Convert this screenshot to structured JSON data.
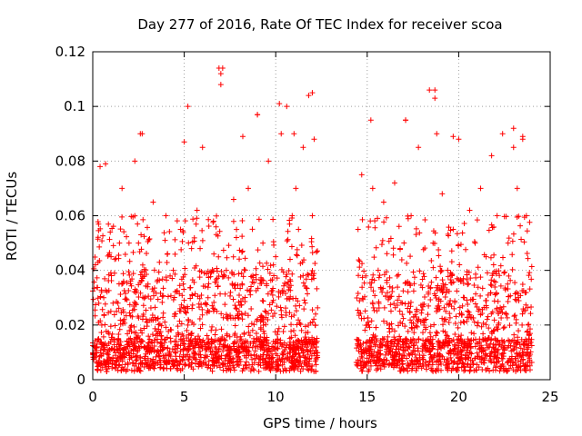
{
  "chart_data": {
    "type": "scatter",
    "title": "Day 277 of 2016, Rate Of TEC Index for receiver scoa",
    "xlabel": "GPS time / hours",
    "ylabel": "ROTI / TECUs",
    "xlim": [
      0,
      25
    ],
    "ylim": [
      0,
      0.12
    ],
    "xticks": [
      0,
      5,
      10,
      15,
      20,
      25
    ],
    "xtick_labels": [
      "0",
      "5",
      "10",
      "15",
      "20",
      "25"
    ],
    "yticks": [
      0,
      0.02,
      0.04,
      0.06,
      0.08,
      0.1,
      0.12
    ],
    "ytick_labels": [
      "0",
      "0.02",
      "0.04",
      "0.06",
      "0.08",
      "0.1",
      "0.12"
    ],
    "grid": true,
    "legend": "none",
    "marker": "plus",
    "color": "#ff0000",
    "data_gap_hours": [
      12.3,
      14.4
    ],
    "series": [
      {
        "name": "ROTI",
        "x": [
          0.2,
          0.4,
          0.6,
          0.7,
          1.0,
          1.3,
          1.6,
          2.0,
          2.3,
          2.5,
          2.7,
          3.0,
          3.3,
          3.7,
          4.0,
          4.4,
          4.8,
          5.0,
          5.2,
          5.4,
          5.7,
          6.0,
          6.3,
          6.6,
          6.9,
          7.0,
          7.3,
          7.7,
          8.0,
          8.2,
          8.5,
          8.8,
          9.0,
          9.3,
          9.6,
          10.0,
          10.3,
          10.6,
          10.9,
          11.1,
          11.5,
          11.8,
          12.0,
          12.1,
          14.5,
          14.7,
          15.0,
          15.3,
          15.6,
          15.9,
          16.2,
          16.5,
          16.8,
          17.1,
          17.4,
          17.8,
          18.1,
          18.4,
          18.6,
          18.8,
          19.1,
          19.4,
          19.7,
          20.0,
          20.3,
          20.6,
          20.9,
          21.2,
          21.5,
          21.8,
          22.1,
          22.4,
          22.7,
          23.0,
          23.2,
          23.5,
          23.7,
          0.3,
          1.1,
          2.2,
          3.5,
          4.6,
          5.8,
          7.1,
          8.4,
          9.7,
          10.8,
          11.6,
          14.9,
          16.0,
          17.3,
          18.5,
          19.6,
          20.8,
          22.0,
          23.3,
          2.6,
          5.2,
          7.0,
          7.1,
          9.0,
          10.2,
          11.0,
          12.0,
          15.2,
          17.1,
          18.7,
          18.7,
          19.7,
          23.0,
          23.5
        ],
        "y": [
          0.012,
          0.078,
          0.03,
          0.079,
          0.045,
          0.025,
          0.07,
          0.018,
          0.08,
          0.05,
          0.09,
          0.034,
          0.065,
          0.012,
          0.06,
          0.04,
          0.055,
          0.087,
          0.02,
          0.048,
          0.062,
          0.085,
          0.03,
          0.058,
          0.114,
          0.108,
          0.04,
          0.066,
          0.025,
          0.089,
          0.07,
          0.015,
          0.097,
          0.05,
          0.08,
          0.045,
          0.09,
          0.1,
          0.06,
          0.07,
          0.085,
          0.104,
          0.06,
          0.088,
          0.055,
          0.075,
          0.02,
          0.07,
          0.04,
          0.065,
          0.03,
          0.072,
          0.048,
          0.095,
          0.06,
          0.085,
          0.02,
          0.106,
          0.05,
          0.09,
          0.068,
          0.04,
          0.055,
          0.088,
          0.03,
          0.062,
          0.05,
          0.07,
          0.045,
          0.082,
          0.06,
          0.09,
          0.05,
          0.085,
          0.07,
          0.088,
          0.06,
          0.005,
          0.008,
          0.006,
          0.01,
          0.007,
          0.009,
          0.006,
          0.008,
          0.005,
          0.01,
          0.007,
          0.006,
          0.009,
          0.005,
          0.008,
          0.007,
          0.006,
          0.009,
          0.005,
          0.09,
          0.1,
          0.112,
          0.114,
          0.097,
          0.101,
          0.09,
          0.105,
          0.095,
          0.095,
          0.106,
          0.103,
          0.089,
          0.092,
          0.089
        ]
      }
    ]
  }
}
